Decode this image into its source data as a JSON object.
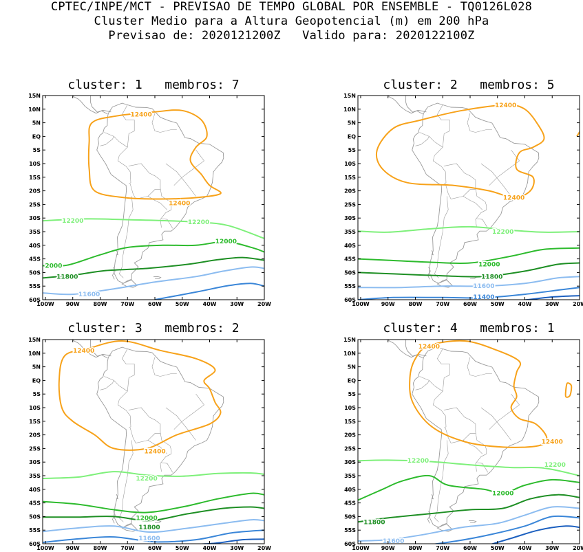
{
  "header": {
    "line1": "CPTEC/INPE/MCT - PREVISAO DE TEMPO GLOBAL POR ENSEMBLE - TQ0126L028",
    "line2": "Cluster Medio para a Altura Geopotencial (m) em 200 hPa",
    "line3": "Previsao de: 2020121200Z   Valido para: 2020122100Z"
  },
  "colors": {
    "c12400": "#f7a21a",
    "c12200": "#7ef07a",
    "c12000": "#2dbb2d",
    "c11800": "#1e8f24",
    "c11600": "#8cbcf0",
    "c11400": "#3a86d8",
    "c11200": "#1b5fbf",
    "coast": "#9a9a9a"
  },
  "lat_ticks": [
    "15N",
    "10N",
    "5N",
    "EQ",
    "5S",
    "10S",
    "15S",
    "20S",
    "25S",
    "30S",
    "35S",
    "40S",
    "45S",
    "50S",
    "55S",
    "60S"
  ],
  "lon_ticks": [
    "100W",
    "90W",
    "80W",
    "70W",
    "60W",
    "50W",
    "40W",
    "30W",
    "20W"
  ],
  "panels": [
    {
      "title": "cluster: 1   membros: 7",
      "labels": [
        {
          "text": "12400",
          "lon": -65,
          "lat": 8,
          "color": "c12400"
        },
        {
          "text": "12400",
          "lon": -51,
          "lat": -24.5,
          "color": "c12400"
        },
        {
          "text": "12200",
          "lon": -90,
          "lat": -31,
          "color": "c12200"
        },
        {
          "text": "12200",
          "lon": -44,
          "lat": -31.5,
          "color": "c12200"
        },
        {
          "text": "12000",
          "lon": -34,
          "lat": -38.5,
          "color": "c12000"
        },
        {
          "text": "2000",
          "lon": -97,
          "lat": -47.5,
          "color": "c12000"
        },
        {
          "text": "11800",
          "lon": -92,
          "lat": -51.5,
          "color": "c11800"
        },
        {
          "text": "11600",
          "lon": -84,
          "lat": -58,
          "color": "c11600"
        }
      ]
    },
    {
      "title": "cluster: 2   membros: 5",
      "labels": [
        {
          "text": "12400",
          "lon": -47,
          "lat": 11.5,
          "color": "c12400"
        },
        {
          "text": "12400",
          "lon": -44,
          "lat": -22.5,
          "color": "c12400"
        },
        {
          "text": "12200",
          "lon": -48,
          "lat": -35,
          "color": "c12200"
        },
        {
          "text": "12000",
          "lon": -53,
          "lat": -47,
          "color": "c12000"
        },
        {
          "text": "11800",
          "lon": -52,
          "lat": -51.5,
          "color": "c11800"
        },
        {
          "text": "11600",
          "lon": -55,
          "lat": -55,
          "color": "c11600"
        },
        {
          "text": "11400",
          "lon": -55,
          "lat": -59,
          "color": "c11400"
        }
      ]
    },
    {
      "title": "cluster: 3   membros: 2",
      "labels": [
        {
          "text": "12400",
          "lon": -86,
          "lat": 11,
          "color": "c12400"
        },
        {
          "text": "12400",
          "lon": -60,
          "lat": -26,
          "color": "c12400"
        },
        {
          "text": "12200",
          "lon": -63,
          "lat": -36,
          "color": "c12200"
        },
        {
          "text": "12000",
          "lon": -63,
          "lat": -50.5,
          "color": "c12000"
        },
        {
          "text": "11800",
          "lon": -62,
          "lat": -54,
          "color": "c11800"
        },
        {
          "text": "11600",
          "lon": -62,
          "lat": -58,
          "color": "c11600"
        }
      ]
    },
    {
      "title": "cluster: 4   membros: 1",
      "labels": [
        {
          "text": "12400",
          "lon": -75,
          "lat": 12.5,
          "color": "c12400"
        },
        {
          "text": "12400",
          "lon": -30,
          "lat": -22.5,
          "color": "c12400"
        },
        {
          "text": "12200",
          "lon": -79,
          "lat": -29.5,
          "color": "c12200"
        },
        {
          "text": "12200",
          "lon": -29,
          "lat": -31,
          "color": "c12200"
        },
        {
          "text": "12000",
          "lon": -48,
          "lat": -41.5,
          "color": "c12000"
        },
        {
          "text": "11800",
          "lon": -95,
          "lat": -52,
          "color": "c11800"
        },
        {
          "text": "11600",
          "lon": -88,
          "lat": -59,
          "color": "c11600"
        }
      ]
    }
  ]
}
